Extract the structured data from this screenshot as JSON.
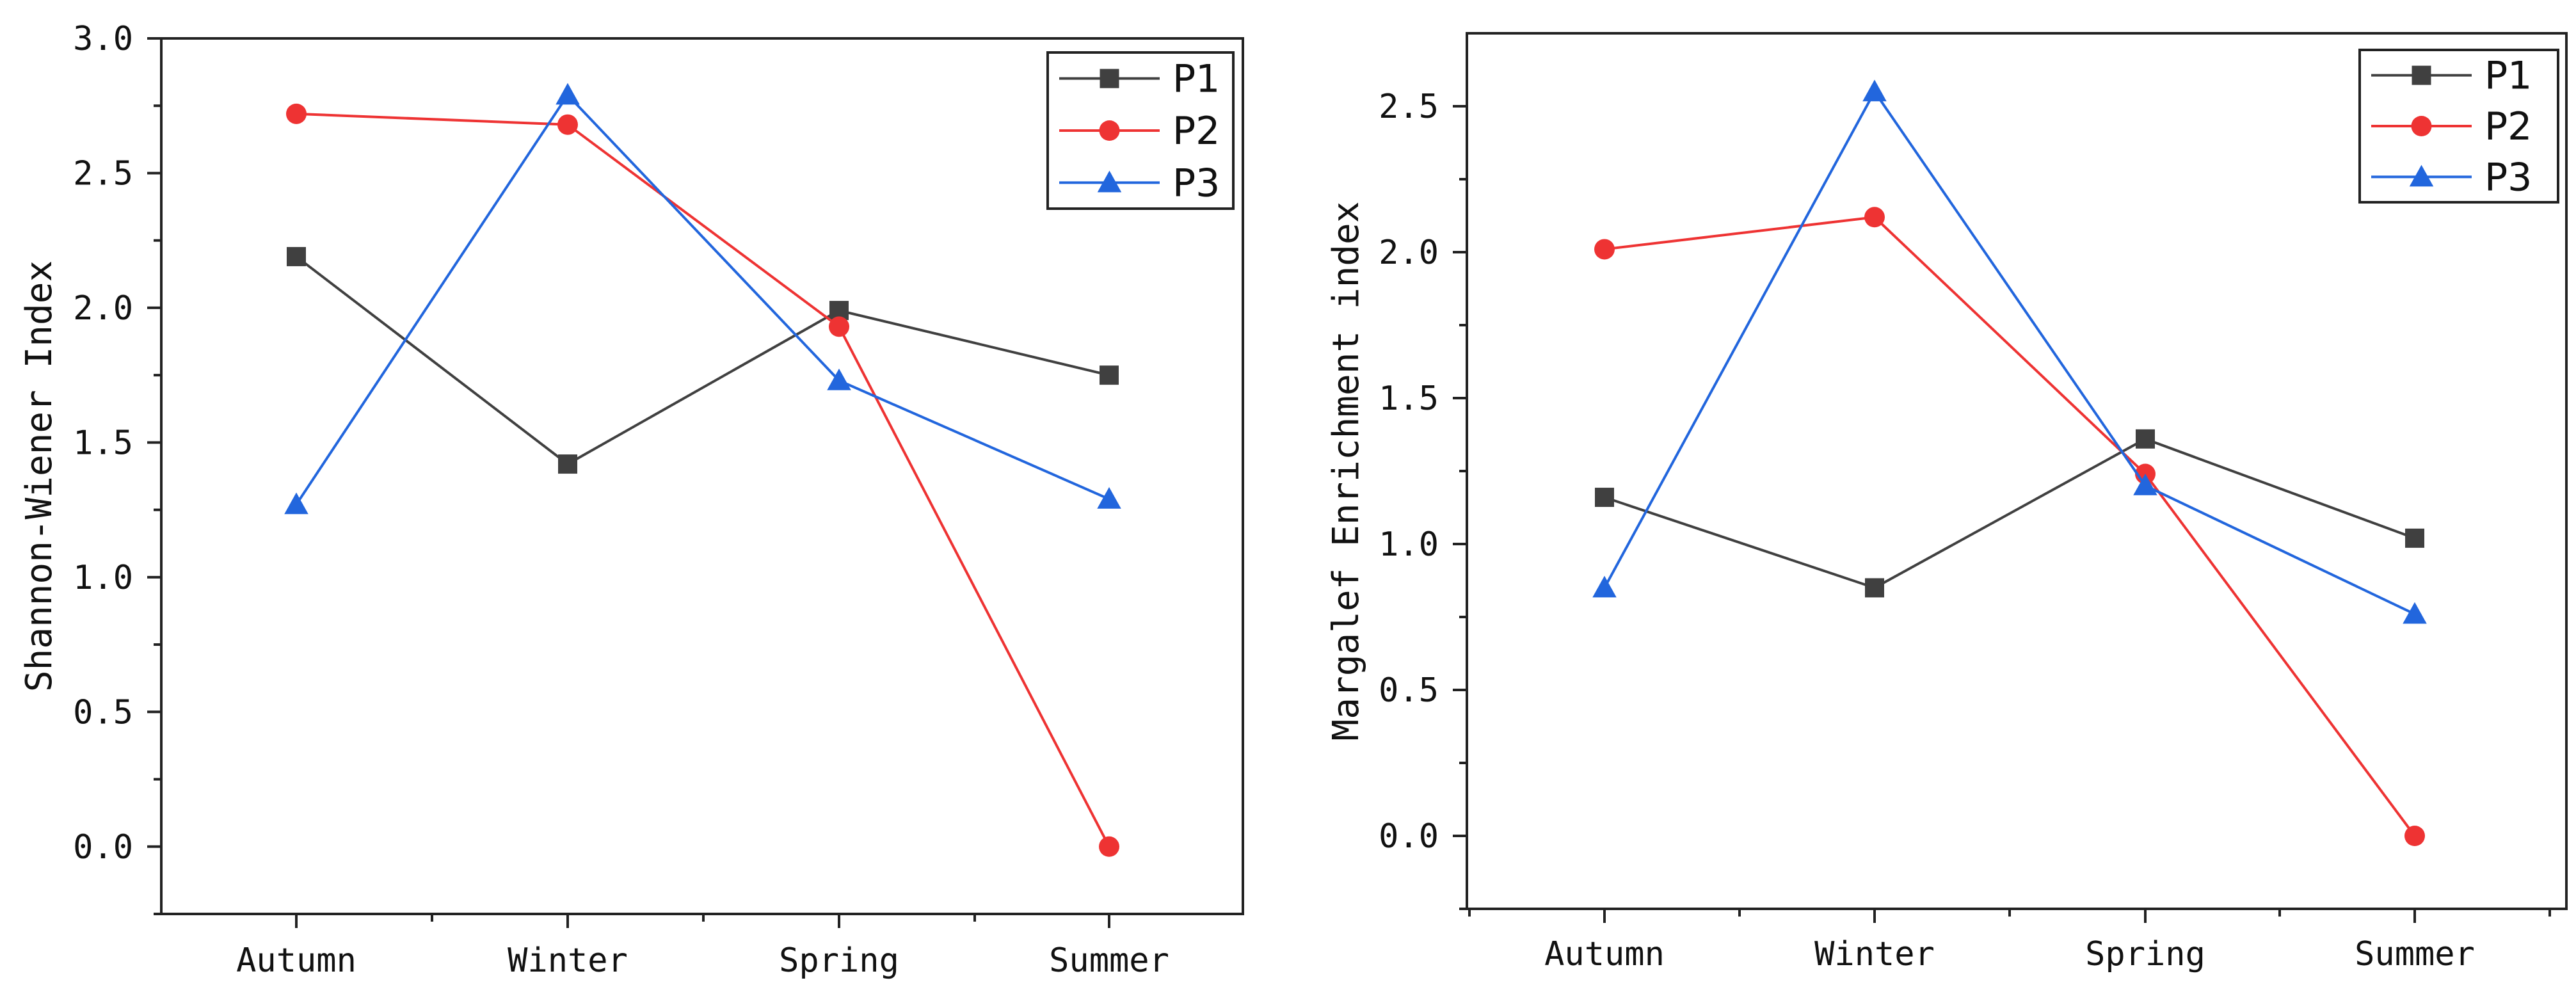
{
  "chart_data": [
    {
      "type": "line",
      "title": "",
      "xlabel": "",
      "ylabel": "Shannon-Wiener Index",
      "categories": [
        "Autumn",
        "Winter",
        "Spring",
        "Summer"
      ],
      "ylim": [
        -0.25,
        3.0
      ],
      "yticks": [
        0.0,
        0.5,
        1.0,
        1.5,
        2.0,
        2.5,
        3.0
      ],
      "ytick_labels": [
        "0.0",
        "0.5",
        "1.0",
        "1.5",
        "2.0",
        "2.5",
        "3.0"
      ],
      "legend_position": "top-right",
      "series": [
        {
          "name": "P1",
          "color": "#404040",
          "marker": "square",
          "values": [
            2.19,
            1.42,
            1.99,
            1.75
          ]
        },
        {
          "name": "P2",
          "color": "#ee3333",
          "marker": "circle",
          "values": [
            2.72,
            2.68,
            1.93,
            0.0
          ]
        },
        {
          "name": "P3",
          "color": "#2266dd",
          "marker": "triangle",
          "values": [
            1.27,
            2.79,
            1.73,
            1.29
          ]
        }
      ]
    },
    {
      "type": "line",
      "title": "",
      "xlabel": "",
      "ylabel": "Margalef Enrichment index",
      "categories": [
        "Autumn",
        "Winter",
        "Spring",
        "Summer"
      ],
      "ylim": [
        -0.25,
        2.75
      ],
      "yticks": [
        0.0,
        0.5,
        1.0,
        1.5,
        2.0,
        2.5
      ],
      "ytick_labels": [
        "0.0",
        "0.5",
        "1.0",
        "1.5",
        "2.0",
        "2.5"
      ],
      "legend_position": "top-right",
      "series": [
        {
          "name": "P1",
          "color": "#404040",
          "marker": "square",
          "values": [
            1.16,
            0.85,
            1.36,
            1.02
          ]
        },
        {
          "name": "P2",
          "color": "#ee3333",
          "marker": "circle",
          "values": [
            2.01,
            2.12,
            1.24,
            0.0
          ]
        },
        {
          "name": "P3",
          "color": "#2266dd",
          "marker": "triangle",
          "values": [
            0.85,
            2.55,
            1.2,
            0.76
          ]
        }
      ]
    }
  ]
}
